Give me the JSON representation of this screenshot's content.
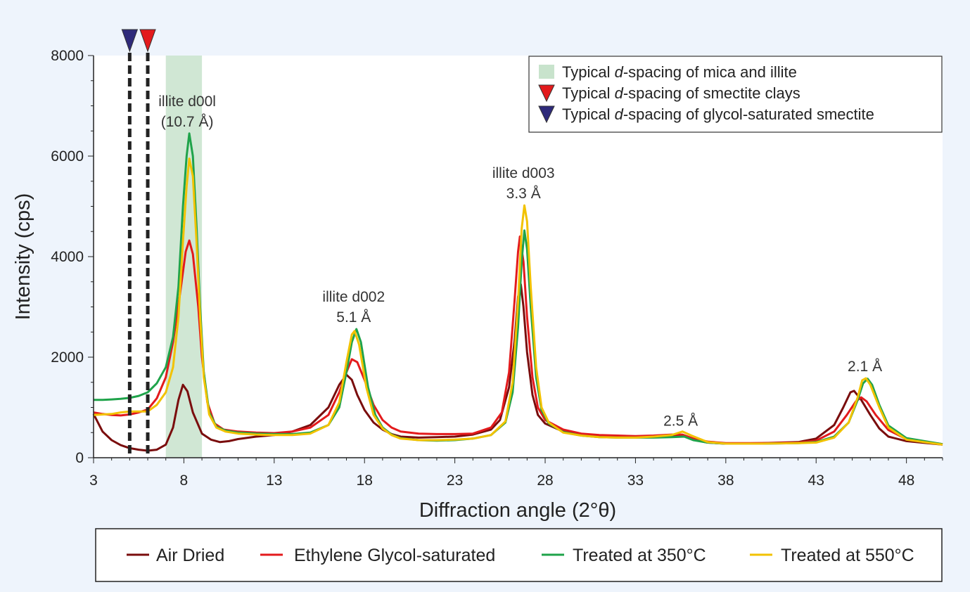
{
  "chart_data": {
    "type": "line",
    "xlabel": "Diffraction angle (2°θ)",
    "ylabel": "Intensity (cps)",
    "xlim": [
      3,
      50
    ],
    "ylim": [
      0,
      8000
    ],
    "x_ticks": [
      "3",
      "8",
      "13",
      "18",
      "23",
      "28",
      "33",
      "38",
      "43",
      "48"
    ],
    "y_ticks": [
      "0",
      "2000",
      "4000",
      "6000",
      "8000"
    ],
    "grid": false,
    "series": [
      {
        "name": "Air Dried",
        "color": "#7a0d0d",
        "points": [
          [
            3,
            870
          ],
          [
            3.5,
            520
          ],
          [
            4,
            350
          ],
          [
            4.5,
            250
          ],
          [
            5,
            190
          ],
          [
            5.5,
            160
          ],
          [
            6,
            140
          ],
          [
            6.5,
            160
          ],
          [
            7,
            260
          ],
          [
            7.4,
            600
          ],
          [
            7.7,
            1150
          ],
          [
            7.95,
            1450
          ],
          [
            8.2,
            1320
          ],
          [
            8.5,
            900
          ],
          [
            9,
            480
          ],
          [
            9.5,
            360
          ],
          [
            10,
            310
          ],
          [
            10.5,
            330
          ],
          [
            11,
            370
          ],
          [
            12,
            420
          ],
          [
            13,
            450
          ],
          [
            14,
            520
          ],
          [
            15,
            650
          ],
          [
            16,
            1000
          ],
          [
            16.6,
            1450
          ],
          [
            17,
            1650
          ],
          [
            17.3,
            1550
          ],
          [
            17.6,
            1250
          ],
          [
            18,
            950
          ],
          [
            18.5,
            700
          ],
          [
            19,
            560
          ],
          [
            19.5,
            470
          ],
          [
            20,
            420
          ],
          [
            21,
            400
          ],
          [
            22,
            410
          ],
          [
            23,
            420
          ],
          [
            24,
            460
          ],
          [
            25,
            560
          ],
          [
            25.5,
            750
          ],
          [
            26,
            1400
          ],
          [
            26.3,
            2300
          ],
          [
            26.5,
            3200
          ],
          [
            26.65,
            3450
          ],
          [
            26.8,
            3000
          ],
          [
            27,
            2100
          ],
          [
            27.3,
            1250
          ],
          [
            27.6,
            850
          ],
          [
            28,
            680
          ],
          [
            29,
            520
          ],
          [
            30,
            460
          ],
          [
            31,
            430
          ],
          [
            32,
            420
          ],
          [
            33,
            410
          ],
          [
            34,
            420
          ],
          [
            35,
            440
          ],
          [
            35.7,
            440
          ],
          [
            36.2,
            360
          ],
          [
            37,
            300
          ],
          [
            38,
            280
          ],
          [
            40,
            290
          ],
          [
            42,
            310
          ],
          [
            43,
            380
          ],
          [
            44,
            650
          ],
          [
            44.5,
            1000
          ],
          [
            44.9,
            1300
          ],
          [
            45.1,
            1330
          ],
          [
            45.5,
            1150
          ],
          [
            46,
            850
          ],
          [
            46.5,
            580
          ],
          [
            47,
            420
          ],
          [
            48,
            330
          ],
          [
            50,
            260
          ]
        ]
      },
      {
        "name": "Ethylene Glycol-saturated",
        "color": "#e31a1c",
        "points": [
          [
            3,
            900
          ],
          [
            3.5,
            870
          ],
          [
            4,
            850
          ],
          [
            4.5,
            840
          ],
          [
            5,
            860
          ],
          [
            5.5,
            900
          ],
          [
            6,
            960
          ],
          [
            6.5,
            1180
          ],
          [
            7,
            1600
          ],
          [
            7.4,
            2300
          ],
          [
            7.8,
            3300
          ],
          [
            8.1,
            4100
          ],
          [
            8.3,
            4320
          ],
          [
            8.5,
            4050
          ],
          [
            8.8,
            3000
          ],
          [
            9,
            2000
          ],
          [
            9.3,
            1100
          ],
          [
            9.7,
            680
          ],
          [
            10.2,
            560
          ],
          [
            11,
            520
          ],
          [
            12,
            500
          ],
          [
            13,
            490
          ],
          [
            14,
            520
          ],
          [
            15,
            600
          ],
          [
            16,
            850
          ],
          [
            16.6,
            1300
          ],
          [
            17,
            1700
          ],
          [
            17.3,
            1960
          ],
          [
            17.6,
            1900
          ],
          [
            18,
            1550
          ],
          [
            18.5,
            1050
          ],
          [
            19,
            750
          ],
          [
            19.5,
            600
          ],
          [
            20,
            520
          ],
          [
            21,
            480
          ],
          [
            22,
            470
          ],
          [
            23,
            470
          ],
          [
            24,
            480
          ],
          [
            25,
            600
          ],
          [
            25.6,
            900
          ],
          [
            26,
            1700
          ],
          [
            26.3,
            3100
          ],
          [
            26.5,
            4100
          ],
          [
            26.6,
            4400
          ],
          [
            26.8,
            3900
          ],
          [
            27,
            2800
          ],
          [
            27.3,
            1600
          ],
          [
            27.6,
            1000
          ],
          [
            28,
            750
          ],
          [
            29,
            560
          ],
          [
            30,
            480
          ],
          [
            31,
            450
          ],
          [
            32,
            440
          ],
          [
            33,
            430
          ],
          [
            34,
            440
          ],
          [
            35,
            460
          ],
          [
            35.6,
            460
          ],
          [
            36.2,
            380
          ],
          [
            37,
            320
          ],
          [
            38,
            290
          ],
          [
            40,
            290
          ],
          [
            42,
            300
          ],
          [
            43,
            340
          ],
          [
            44,
            520
          ],
          [
            44.7,
            850
          ],
          [
            45.2,
            1120
          ],
          [
            45.5,
            1200
          ],
          [
            45.8,
            1120
          ],
          [
            46.3,
            850
          ],
          [
            47,
            550
          ],
          [
            48,
            370
          ],
          [
            50,
            270
          ]
        ]
      },
      {
        "name": "Treated at 350°C",
        "color": "#1fa34a",
        "points": [
          [
            3,
            1150
          ],
          [
            3.5,
            1150
          ],
          [
            4,
            1160
          ],
          [
            4.5,
            1170
          ],
          [
            5,
            1190
          ],
          [
            5.5,
            1230
          ],
          [
            6,
            1300
          ],
          [
            6.5,
            1480
          ],
          [
            7,
            1800
          ],
          [
            7.4,
            2400
          ],
          [
            7.7,
            3400
          ],
          [
            7.95,
            5000
          ],
          [
            8.15,
            6000
          ],
          [
            8.3,
            6450
          ],
          [
            8.5,
            6000
          ],
          [
            8.7,
            4600
          ],
          [
            8.9,
            3000
          ],
          [
            9.1,
            1700
          ],
          [
            9.4,
            900
          ],
          [
            9.8,
            620
          ],
          [
            10.3,
            540
          ],
          [
            11,
            500
          ],
          [
            12,
            480
          ],
          [
            13,
            470
          ],
          [
            14,
            470
          ],
          [
            15,
            500
          ],
          [
            16,
            650
          ],
          [
            16.6,
            1000
          ],
          [
            17,
            1700
          ],
          [
            17.3,
            2300
          ],
          [
            17.55,
            2560
          ],
          [
            17.8,
            2300
          ],
          [
            18.2,
            1400
          ],
          [
            18.6,
            850
          ],
          [
            19,
            600
          ],
          [
            19.5,
            460
          ],
          [
            20,
            390
          ],
          [
            21,
            350
          ],
          [
            22,
            340
          ],
          [
            23,
            350
          ],
          [
            24,
            380
          ],
          [
            25,
            450
          ],
          [
            25.8,
            700
          ],
          [
            26.2,
            1300
          ],
          [
            26.5,
            2600
          ],
          [
            26.7,
            3900
          ],
          [
            26.85,
            4520
          ],
          [
            27,
            4150
          ],
          [
            27.2,
            3000
          ],
          [
            27.5,
            1600
          ],
          [
            27.8,
            950
          ],
          [
            28.2,
            680
          ],
          [
            29,
            510
          ],
          [
            30,
            440
          ],
          [
            31,
            410
          ],
          [
            32,
            400
          ],
          [
            33,
            400
          ],
          [
            34,
            400
          ],
          [
            35,
            410
          ],
          [
            35.7,
            420
          ],
          [
            36.2,
            350
          ],
          [
            37,
            300
          ],
          [
            38,
            280
          ],
          [
            40,
            280
          ],
          [
            42,
            290
          ],
          [
            43,
            310
          ],
          [
            44,
            420
          ],
          [
            44.8,
            700
          ],
          [
            45.3,
            1150
          ],
          [
            45.6,
            1480
          ],
          [
            45.85,
            1570
          ],
          [
            46.1,
            1450
          ],
          [
            46.5,
            1050
          ],
          [
            47,
            640
          ],
          [
            48,
            390
          ],
          [
            50,
            270
          ]
        ]
      },
      {
        "name": "Treated at 550°C",
        "color": "#f2c200",
        "points": [
          [
            3,
            850
          ],
          [
            3.5,
            860
          ],
          [
            4,
            870
          ],
          [
            4.5,
            900
          ],
          [
            5,
            920
          ],
          [
            5.5,
            920
          ],
          [
            6,
            920
          ],
          [
            6.5,
            1050
          ],
          [
            7,
            1300
          ],
          [
            7.4,
            1800
          ],
          [
            7.7,
            2800
          ],
          [
            7.95,
            4300
          ],
          [
            8.15,
            5400
          ],
          [
            8.3,
            5950
          ],
          [
            8.5,
            5600
          ],
          [
            8.7,
            4300
          ],
          [
            8.9,
            2800
          ],
          [
            9.1,
            1600
          ],
          [
            9.4,
            860
          ],
          [
            9.8,
            600
          ],
          [
            10.3,
            520
          ],
          [
            11,
            480
          ],
          [
            12,
            460
          ],
          [
            13,
            450
          ],
          [
            14,
            450
          ],
          [
            15,
            480
          ],
          [
            16,
            650
          ],
          [
            16.6,
            1100
          ],
          [
            17,
            1900
          ],
          [
            17.3,
            2450
          ],
          [
            17.45,
            2520
          ],
          [
            17.7,
            2250
          ],
          [
            18.1,
            1400
          ],
          [
            18.5,
            850
          ],
          [
            19,
            580
          ],
          [
            19.5,
            450
          ],
          [
            20,
            380
          ],
          [
            21,
            350
          ],
          [
            22,
            350
          ],
          [
            23,
            360
          ],
          [
            24,
            380
          ],
          [
            25,
            450
          ],
          [
            25.8,
            720
          ],
          [
            26.2,
            1500
          ],
          [
            26.5,
            3100
          ],
          [
            26.7,
            4550
          ],
          [
            26.85,
            5020
          ],
          [
            27,
            4700
          ],
          [
            27.2,
            3400
          ],
          [
            27.5,
            1800
          ],
          [
            27.8,
            1000
          ],
          [
            28.2,
            700
          ],
          [
            29,
            500
          ],
          [
            30,
            440
          ],
          [
            31,
            410
          ],
          [
            32,
            400
          ],
          [
            33,
            400
          ],
          [
            34,
            420
          ],
          [
            35,
            450
          ],
          [
            35.6,
            520
          ],
          [
            36.1,
            440
          ],
          [
            37,
            310
          ],
          [
            38,
            280
          ],
          [
            40,
            280
          ],
          [
            42,
            290
          ],
          [
            43,
            300
          ],
          [
            44,
            400
          ],
          [
            44.8,
            700
          ],
          [
            45.3,
            1200
          ],
          [
            45.55,
            1540
          ],
          [
            45.75,
            1580
          ],
          [
            46,
            1450
          ],
          [
            46.5,
            1000
          ],
          [
            47,
            600
          ],
          [
            48,
            360
          ],
          [
            50,
            260
          ]
        ]
      }
    ],
    "shaded_region": {
      "x_start": 7,
      "x_end": 9,
      "color": "#c8e3cc"
    },
    "markers": [
      {
        "x": 5,
        "color": "#2e2a7a",
        "style": "dashed"
      },
      {
        "x": 6,
        "color": "#e31a1c",
        "style": "dashed"
      }
    ],
    "annotations": [
      {
        "lines": [
          "illite d00l",
          "(10.7 Å)"
        ],
        "x": 8.3,
        "y": 6450
      },
      {
        "lines": [
          "illite d002",
          "5.1 Å"
        ],
        "x": 17.4,
        "y": 2560
      },
      {
        "lines": [
          "illite d003",
          "3.3 Å"
        ],
        "x": 26.8,
        "y": 5020
      },
      {
        "lines": [
          "2.5 Å"
        ],
        "x": 35.5,
        "y": 500
      },
      {
        "lines": [
          "2.1 Å"
        ],
        "x": 45.7,
        "y": 1580
      }
    ],
    "legend_top_right": [
      {
        "symbol": "square",
        "color": "#c8e3cc",
        "pre": "Typical ",
        "italic": "d",
        "post": "-spacing of mica and illite"
      },
      {
        "symbol": "triangle",
        "color": "#e31a1c",
        "pre": "Typical ",
        "italic": "d",
        "post": "-spacing of smectite clays"
      },
      {
        "symbol": "triangle",
        "color": "#2e2a7a",
        "pre": "Typical ",
        "italic": "d",
        "post": "-spacing of glycol-saturated smectite"
      }
    ],
    "legend_bottom": [
      "Air Dried",
      "Ethylene Glycol-saturated",
      "Treated at 350°C",
      "Treated at 550°C"
    ]
  }
}
